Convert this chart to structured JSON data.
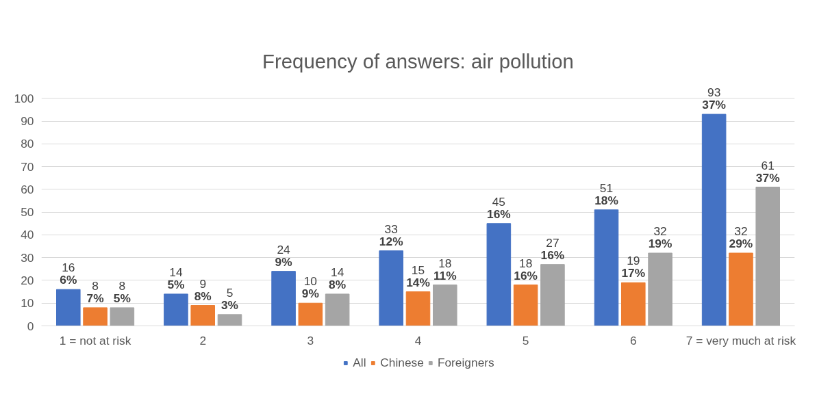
{
  "chart_data": {
    "type": "bar",
    "title": "Frequency of answers: air pollution",
    "categories": [
      "1 = not at risk",
      "2",
      "3",
      "4",
      "5",
      "6",
      "7 = very much at risk"
    ],
    "series": [
      {
        "name": "All",
        "color": "#4472c4",
        "values": [
          16,
          14,
          24,
          33,
          45,
          51,
          93
        ],
        "value_labels": [
          "16\n6%",
          "14\n5%",
          "24\n9%",
          "33\n12%",
          "45\n16%",
          "51\n18%",
          "93\n37%"
        ]
      },
      {
        "name": "Chinese",
        "color": "#ed7d31",
        "values": [
          8,
          9,
          10,
          15,
          18,
          19,
          32
        ],
        "value_labels": [
          "8\n7%",
          "9\n8%",
          "10\n9%",
          "15\n14%",
          "18\n16%",
          "19\n17%",
          "32\n29%"
        ]
      },
      {
        "name": "Foreigners",
        "color": "#a5a5a5",
        "values": [
          8,
          5,
          14,
          18,
          27,
          32,
          61
        ],
        "value_labels": [
          "8\n5%",
          "5\n3%",
          "14\n8%",
          "18\n11%",
          "27\n16%",
          "32\n19%",
          "61\n37%"
        ]
      }
    ],
    "ylim": [
      0,
      100
    ],
    "yticks": [
      0,
      10,
      20,
      30,
      40,
      50,
      60,
      70,
      80,
      90,
      100
    ],
    "grid": "y",
    "legend": "bottom"
  }
}
